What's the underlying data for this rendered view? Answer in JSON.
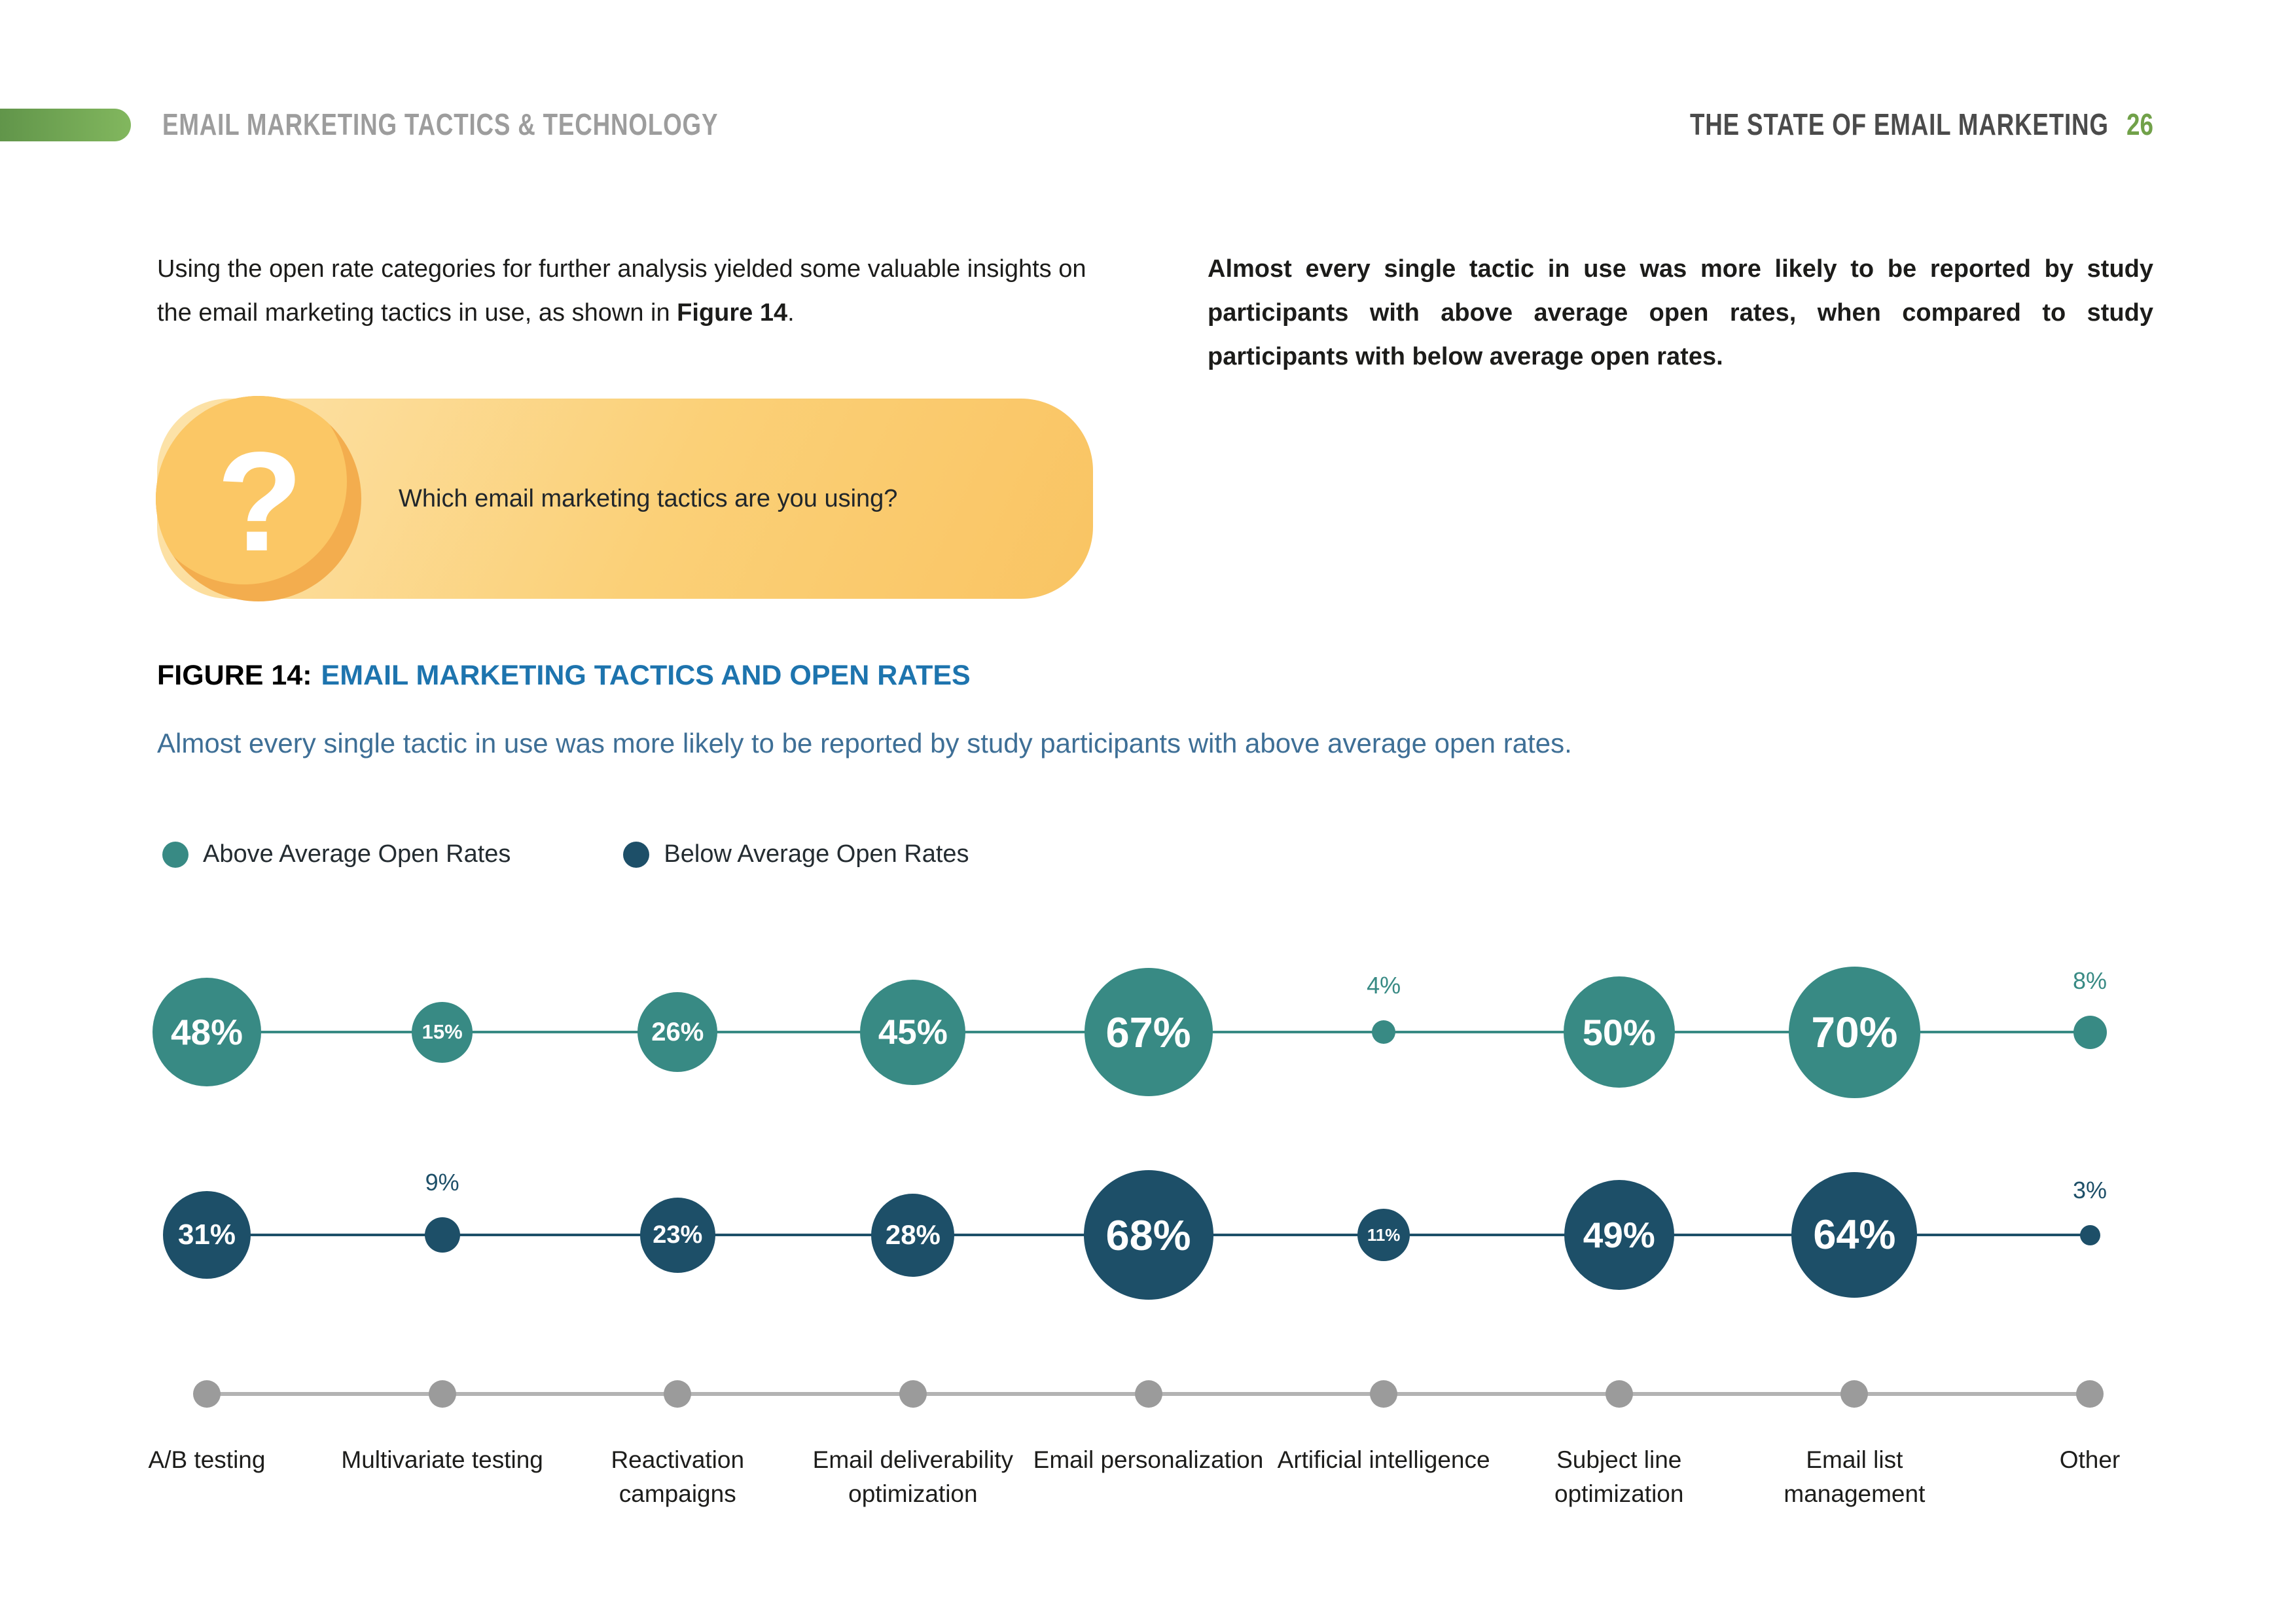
{
  "header": {
    "left_title": "EMAIL MARKETING TACTICS & TECHNOLOGY",
    "right_title": "THE STATE OF EMAIL MARKETING",
    "page_number": "26"
  },
  "intro": {
    "left_text_before": "Using the open rate categories for further analysis yielded some valuable insights on the email marketing tactics in use, as shown in ",
    "left_text_bold": "Figure 14",
    "left_text_after": ".",
    "right_text": "Almost every single tactic in use was more likely to be reported by study participants with above average open rates, when compared to study participants with below average open rates."
  },
  "callout": {
    "question_mark": "?",
    "question_text": "Which email marketing tactics are you using?"
  },
  "figure": {
    "label": "FIGURE 14:",
    "title": "EMAIL MARKETING TACTICS AND OPEN RATES",
    "subtitle": "Almost every single tactic in use was more likely to be reported by study participants with above average open rates."
  },
  "legend": {
    "items": [
      {
        "label": "Above Average Open Rates",
        "color": "#388a84"
      },
      {
        "label": "Below Average Open Rates",
        "color": "#1d4f68"
      }
    ]
  },
  "colors": {
    "accent_green": "#71a149",
    "teal": "#388a84",
    "dark_blue": "#1d4f68",
    "figure_blue": "#1d74ae",
    "subtitle_blue": "#3e6f96",
    "callout_yellow": "#fbc765",
    "axis_gray": "#9b9b9b"
  },
  "chart_data": {
    "type": "bubble",
    "title": "EMAIL MARKETING TACTICS AND OPEN RATES",
    "categories": [
      "A/B testing",
      "Multivariate testing",
      "Reactivation campaigns",
      "Email deliverability optimization",
      "Email personalization",
      "Artificial intelligence",
      "Subject line optimization",
      "Email list management",
      "Other"
    ],
    "series": [
      {
        "name": "Above Average Open Rates",
        "color": "#388a84",
        "values": [
          48,
          15,
          26,
          45,
          67,
          4,
          50,
          70,
          8
        ]
      },
      {
        "name": "Below Average Open Rates",
        "color": "#1d4f68",
        "values": [
          31,
          9,
          23,
          28,
          68,
          11,
          49,
          64,
          3
        ]
      }
    ],
    "value_format": "percent",
    "layout_hints": {
      "legend_position": "top-left",
      "grid": false,
      "small_value_label_outside_threshold": 10
    }
  }
}
